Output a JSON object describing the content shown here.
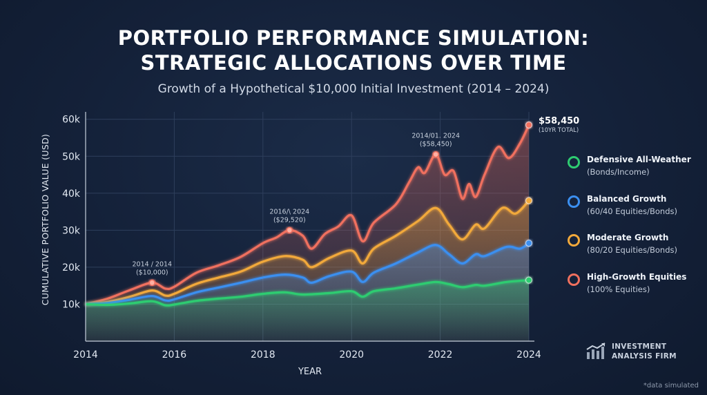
{
  "header": {
    "title_line1": "PORTFOLIO PERFORMANCE SIMULATION:",
    "title_line2": "STRATEGIC ALLOCATIONS OVER TIME",
    "subtitle": "Growth of a Hypothetical $10,000 Initial Investment (2014 – 2024)"
  },
  "legend": [
    {
      "name": "Defensive All-Weather",
      "sub": "(Bonds/Income)",
      "color": "#2ecc71"
    },
    {
      "name": "Balanced Growth",
      "sub": "(60/40 Equities/Bonds)",
      "color": "#3b8ff0"
    },
    {
      "name": "Moderate Growth",
      "sub": "(80/20 Equities/Bonds)",
      "color": "#f2a93b"
    },
    {
      "name": "High-Growth Equities",
      "sub": "(100% Equities)",
      "color": "#f0705e"
    }
  ],
  "firm": {
    "line1": "INVESTMENT",
    "line2": "ANALYSIS FIRM",
    "icon": "bar-chart-trend-icon"
  },
  "footnote": "*data simulated",
  "chart_data": {
    "type": "area",
    "xlabel": "YEAR",
    "ylabel": "CUMULATIVE PORTFOLIO VALUE (USD)",
    "xlim": [
      2014,
      2024
    ],
    "ylim": [
      0,
      62000
    ],
    "x_ticks": [
      2014,
      2016,
      2018,
      2020,
      2022,
      2024
    ],
    "x_tick_labels": [
      "2014",
      "2016",
      "2018",
      "2020",
      "2022",
      "2024"
    ],
    "y_ticks": [
      10000,
      20000,
      30000,
      40000,
      50000,
      60000
    ],
    "y_tick_labels": [
      "10k",
      "20k",
      "30k",
      "40k",
      "50k",
      "60k"
    ],
    "grid": true,
    "legend_position": "right",
    "series": [
      {
        "name": "Defensive All-Weather",
        "color": "#2ecc71",
        "x": [
          2014,
          2014.5,
          2015,
          2015.5,
          2015.8,
          2016,
          2016.5,
          2017,
          2017.5,
          2018,
          2018.5,
          2018.9,
          2019.5,
          2020,
          2020.25,
          2020.5,
          2021,
          2021.5,
          2021.9,
          2022.2,
          2022.5,
          2022.8,
          2023,
          2023.5,
          2024
        ],
        "values": [
          10000,
          9800,
          10200,
          10800,
          9700,
          9900,
          10900,
          11500,
          12000,
          12800,
          13200,
          12600,
          13000,
          13500,
          12000,
          13500,
          14300,
          15300,
          16000,
          15400,
          14600,
          15200,
          15000,
          16000,
          16500
        ]
      },
      {
        "name": "Balanced Growth",
        "color": "#3b8ff0",
        "x": [
          2014,
          2014.5,
          2015,
          2015.5,
          2015.8,
          2016,
          2016.5,
          2017,
          2017.5,
          2018,
          2018.5,
          2018.9,
          2019.1,
          2019.5,
          2020,
          2020.25,
          2020.5,
          2021,
          2021.5,
          2021.9,
          2022.2,
          2022.5,
          2022.8,
          2023,
          2023.5,
          2023.8,
          2024
        ],
        "values": [
          10000,
          10300,
          11200,
          12200,
          11000,
          11300,
          13200,
          14500,
          15800,
          17200,
          18000,
          17200,
          15800,
          17600,
          18800,
          16000,
          18500,
          21000,
          24000,
          26000,
          23500,
          21000,
          23500,
          23000,
          25500,
          25000,
          26500
        ]
      },
      {
        "name": "Moderate Growth",
        "color": "#f2a93b",
        "x": [
          2014,
          2014.5,
          2015,
          2015.5,
          2015.8,
          2016,
          2016.5,
          2017,
          2017.5,
          2018,
          2018.5,
          2018.9,
          2019.1,
          2019.5,
          2020,
          2020.25,
          2020.5,
          2021,
          2021.5,
          2021.9,
          2022.2,
          2022.5,
          2022.8,
          2023,
          2023.4,
          2023.7,
          2024
        ],
        "values": [
          10000,
          10600,
          12000,
          13700,
          12300,
          12800,
          15500,
          17200,
          18800,
          21500,
          23000,
          22000,
          20000,
          22500,
          24500,
          21000,
          25000,
          28500,
          32500,
          36000,
          31500,
          27500,
          31500,
          30500,
          36000,
          34500,
          38000
        ]
      },
      {
        "name": "High-Growth Equities",
        "color": "#f0705e",
        "x": [
          2014,
          2014.5,
          2015,
          2015.5,
          2015.8,
          2016,
          2016.5,
          2017,
          2017.5,
          2018,
          2018.3,
          2018.6,
          2018.9,
          2019.1,
          2019.4,
          2019.7,
          2020,
          2020.25,
          2020.5,
          2021,
          2021.3,
          2021.5,
          2021.65,
          2021.9,
          2022.1,
          2022.3,
          2022.5,
          2022.65,
          2022.8,
          2023,
          2023.3,
          2023.55,
          2023.8,
          2024
        ],
        "values": [
          10000,
          11500,
          13800,
          15800,
          14200,
          14700,
          18500,
          20500,
          22800,
          26500,
          28000,
          30000,
          28500,
          25000,
          29000,
          31000,
          34000,
          27000,
          32000,
          37000,
          43000,
          47000,
          45500,
          50500,
          45000,
          46000,
          38500,
          42500,
          39000,
          45000,
          52500,
          49500,
          53500,
          58450
        ]
      }
    ],
    "annotations": [
      {
        "x": 2015.5,
        "y": 15800,
        "label_line1": "2014 / 2014",
        "label_line2": "($10,000)"
      },
      {
        "x": 2018.6,
        "y": 30000,
        "label_line1": "2016/\\ 2024",
        "label_line2": "($29,520)"
      },
      {
        "x": 2021.9,
        "y": 50500,
        "label_line1": "2014/01. 2024",
        "label_line2": "($58,450)"
      }
    ],
    "end_label": {
      "value": "$58,450",
      "note": "(10YR TOTAL)"
    }
  }
}
